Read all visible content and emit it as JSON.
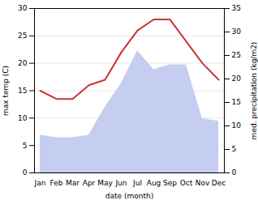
{
  "chart_data": {
    "type": "line",
    "categories": [
      "Jan",
      "Feb",
      "Mar",
      "Apr",
      "May",
      "Jun",
      "Jul",
      "Aug",
      "Sep",
      "Oct",
      "Nov",
      "Dec"
    ],
    "xlabel": "date (month)",
    "ylabel": "max temp (C)",
    "y2label": "med. precipitation (kg/m2)",
    "series": [
      {
        "name": "med. precipitation (kg/m2)",
        "type": "area",
        "axis": "y2",
        "color": "#c5cdf0",
        "values": [
          8.0,
          7.5,
          7.5,
          8.0,
          14.0,
          19.0,
          26.0,
          22.0,
          23.0,
          23.0,
          11.5,
          11.0
        ]
      },
      {
        "name": "max temp (C)",
        "type": "line",
        "color": "#cc3333",
        "values": [
          15.0,
          13.5,
          13.5,
          16.0,
          17.0,
          22.0,
          26.0,
          28.0,
          28.0,
          24.0,
          20.0,
          17.0
        ]
      }
    ],
    "ylim": [
      0,
      30
    ],
    "yticks": [
      0,
      5,
      10,
      15,
      20,
      25,
      30
    ],
    "y2lim": [
      0,
      35
    ],
    "y2ticks": [
      0,
      5,
      10,
      15,
      20,
      25,
      30,
      35
    ],
    "grid": true
  }
}
